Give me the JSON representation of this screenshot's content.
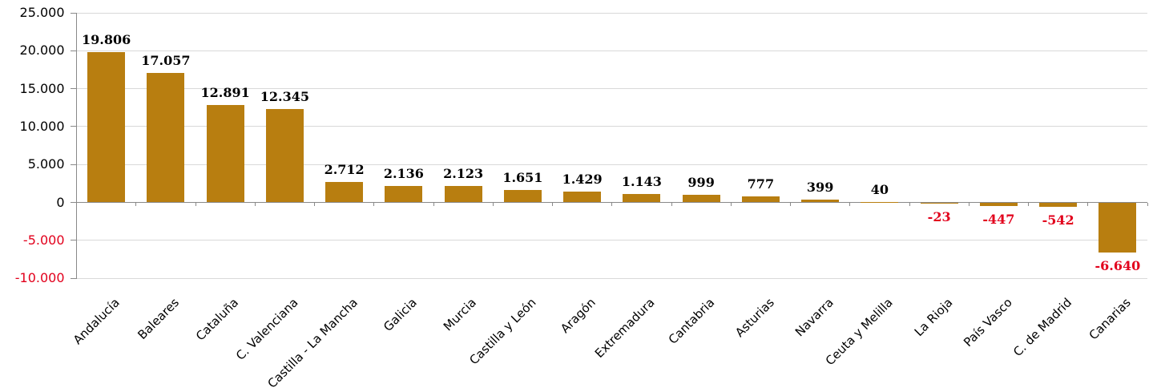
{
  "chart_data": {
    "type": "bar",
    "title": "",
    "xlabel": "",
    "ylabel": "",
    "categories": [
      "Andalucía",
      "Baleares",
      "Cataluña",
      "C. Valenciana",
      "Castilla - La Mancha",
      "Galicia",
      "Murcia",
      "Castilla y León",
      "Aragón",
      "Extremadura",
      "Cantabria",
      "Asturias",
      "Navarra",
      "Ceuta y Melilla",
      "La Rioja",
      "País Vasco",
      "C. de Madrid",
      "Canarias"
    ],
    "values": [
      19806,
      17057,
      12891,
      12345,
      2712,
      2136,
      2123,
      1651,
      1429,
      1143,
      999,
      777,
      399,
      40,
      -23,
      -447,
      -542,
      -6640
    ],
    "value_labels": [
      "19.806",
      "17.057",
      "12.891",
      "12.345",
      "2.712",
      "2.136",
      "2.123",
      "1.651",
      "1.429",
      "1.143",
      "999",
      "777",
      "399",
      "40",
      "-23",
      "-447",
      "-542",
      "-6.640"
    ],
    "y_tick_values": [
      25000,
      20000,
      15000,
      10000,
      5000,
      0,
      -5000,
      -10000
    ],
    "y_tick_labels": [
      "25.000",
      "20.000",
      "15.000",
      "10.000",
      "5.000",
      "0",
      "-5.000",
      "-10.000"
    ],
    "ylim": [
      -10000,
      25000
    ],
    "grid": "horizontal",
    "legend": "none",
    "x_label_rotation_deg": 45,
    "colors": {
      "bar": "#B87E10",
      "gridline": "#D9D9D9",
      "axis": "#898989",
      "positive_label": "#000000",
      "negative_label": "#E2001C",
      "background": "#FFFFFF"
    }
  }
}
